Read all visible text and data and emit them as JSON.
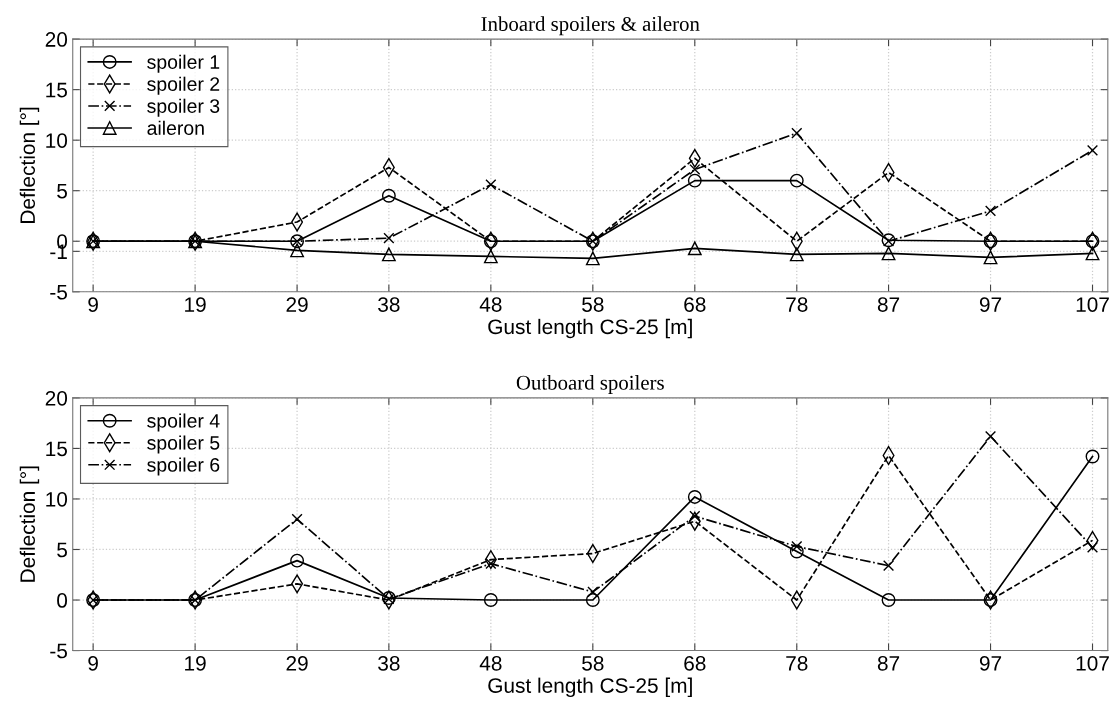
{
  "chart_data": [
    {
      "type": "line",
      "title": "Inboard spoilers & aileron",
      "xlabel": "Gust length CS-25 [m]",
      "ylabel": "Deflection [°]",
      "x": [
        9,
        19,
        29,
        38,
        48,
        58,
        68,
        78,
        87,
        97,
        107
      ],
      "xlim": [
        7,
        108.5
      ],
      "xticks": [
        9,
        19,
        29,
        38,
        48,
        58,
        68,
        78,
        87,
        97,
        107
      ],
      "ylim": [
        -5,
        20
      ],
      "yticks": [
        -5,
        -1,
        0,
        5,
        10,
        15,
        20
      ],
      "grid": true,
      "legend": "top left",
      "series": [
        {
          "name": "spoiler 1",
          "color": "#000000",
          "marker": "circle",
          "line_style": "solid",
          "values": [
            0,
            0,
            0,
            4.5,
            0,
            0,
            6,
            6,
            0.1,
            0,
            0
          ]
        },
        {
          "name": "spoiler 2",
          "color": "#000000",
          "marker": "diamond",
          "line_style": "dashed",
          "values": [
            0,
            0,
            1.9,
            7.3,
            0,
            0,
            8.2,
            0,
            6.8,
            0,
            0
          ]
        },
        {
          "name": "spoiler 3",
          "color": "#000000",
          "marker": "cross",
          "line_style": "dashdot",
          "values": [
            0,
            0,
            0,
            0.3,
            5.6,
            0,
            7.1,
            10.7,
            0,
            3,
            9
          ]
        },
        {
          "name": "aileron",
          "color": "#000000",
          "marker": "triangle",
          "line_style": "solid",
          "values": [
            0,
            0,
            -0.9,
            -1.3,
            -1.5,
            -1.7,
            -0.7,
            -1.3,
            -1.2,
            -1.6,
            -1.2
          ]
        }
      ]
    },
    {
      "type": "line",
      "title": "Outboard spoilers",
      "xlabel": "Gust length CS-25 [m]",
      "ylabel": "Deflection [°]",
      "x": [
        9,
        19,
        29,
        38,
        48,
        58,
        68,
        78,
        87,
        97,
        107
      ],
      "xlim": [
        7,
        108.5
      ],
      "xticks": [
        9,
        19,
        29,
        38,
        48,
        58,
        68,
        78,
        87,
        97,
        107
      ],
      "ylim": [
        -5,
        20
      ],
      "yticks": [
        -5,
        0,
        5,
        10,
        15,
        20
      ],
      "grid": true,
      "legend": "top left",
      "series": [
        {
          "name": "spoiler 4",
          "color": "#000000",
          "marker": "circle",
          "line_style": "solid",
          "values": [
            0,
            0,
            3.9,
            0.2,
            0,
            0,
            10.2,
            4.8,
            0,
            0,
            14.2
          ]
        },
        {
          "name": "spoiler 5",
          "color": "#000000",
          "marker": "diamond",
          "line_style": "dashed",
          "values": [
            0,
            0,
            1.6,
            0,
            4,
            4.6,
            7.8,
            0,
            14.3,
            0,
            5.9
          ]
        },
        {
          "name": "spoiler 6",
          "color": "#000000",
          "marker": "cross",
          "line_style": "dashdot",
          "values": [
            0,
            0,
            8,
            0.1,
            3.6,
            0.8,
            8.3,
            5.3,
            3.4,
            16.2,
            5.2
          ]
        }
      ]
    }
  ]
}
